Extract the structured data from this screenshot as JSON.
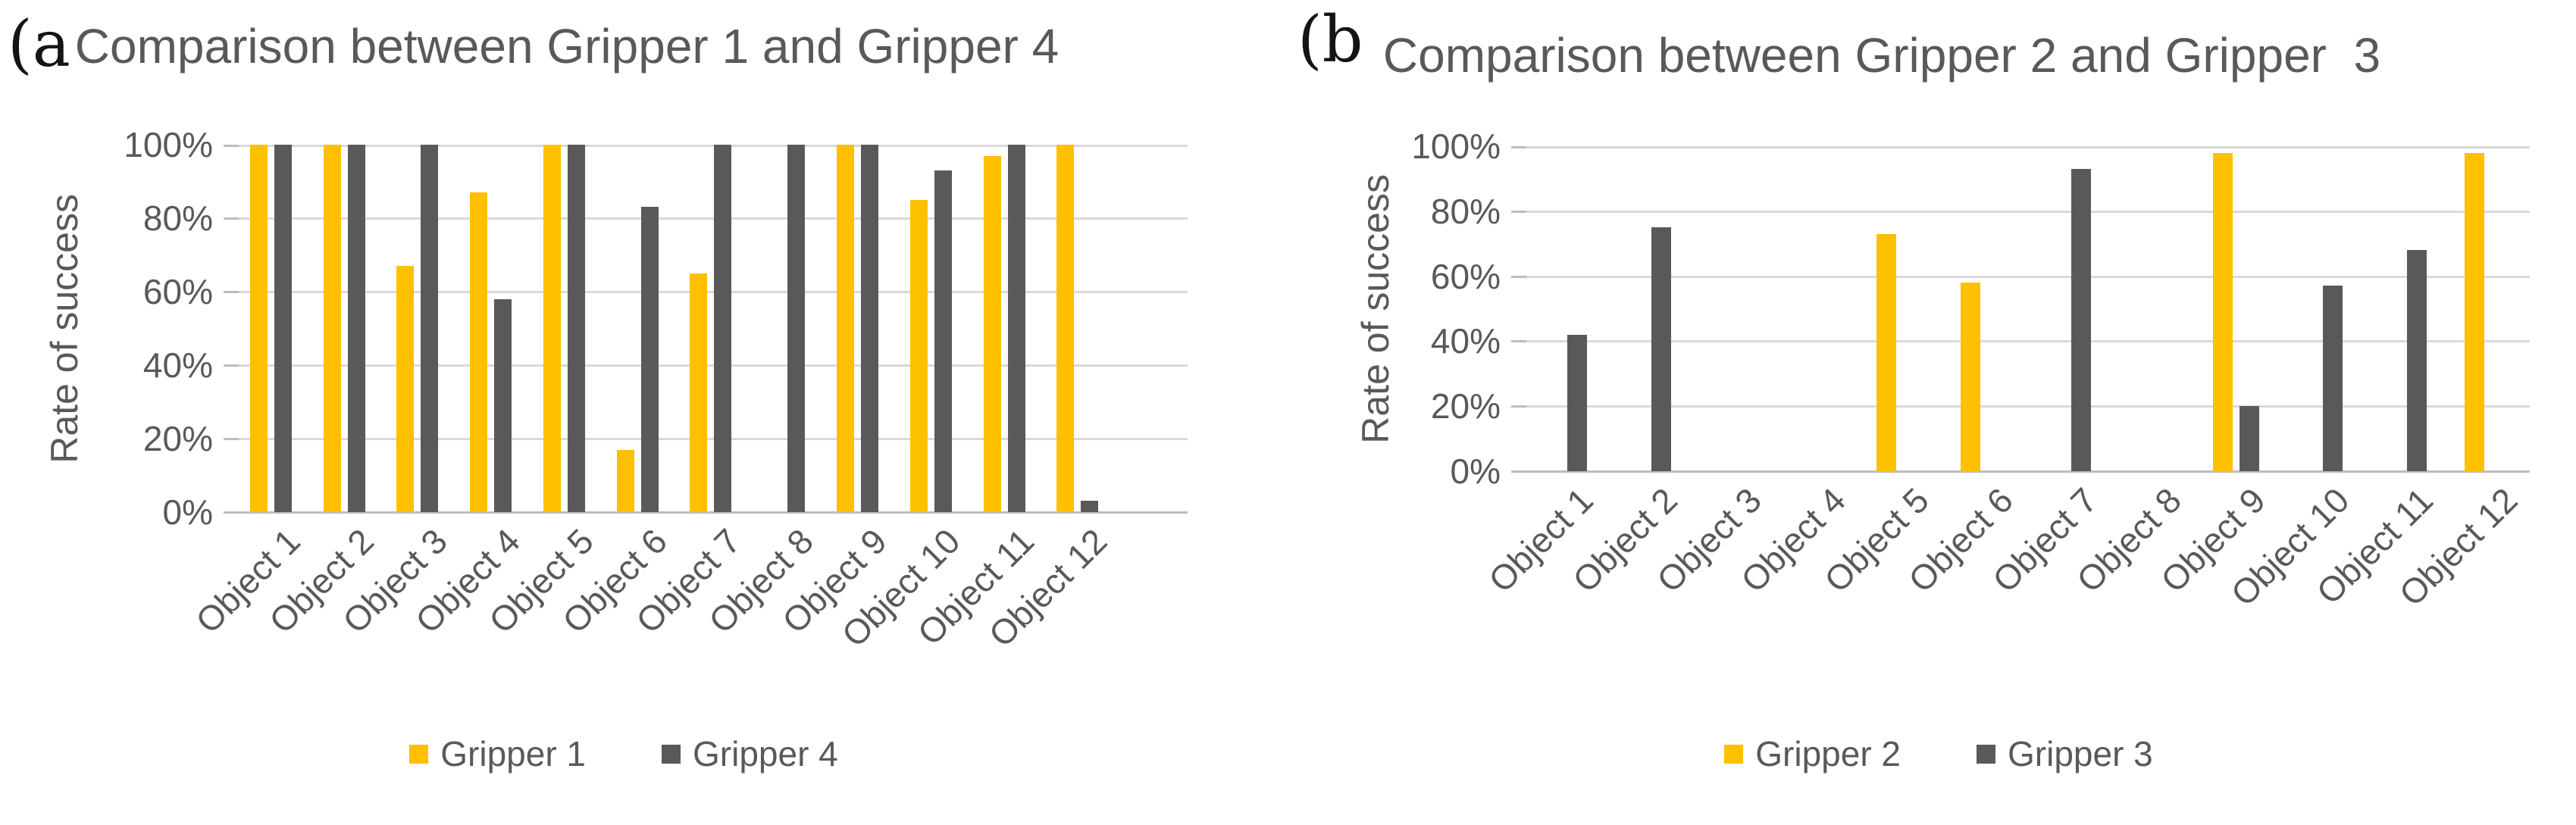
{
  "figure": {
    "panels": [
      {
        "panel_label": "(a"
      },
      {
        "panel_label": "(b"
      }
    ]
  },
  "chart_data": [
    {
      "type": "bar",
      "title": "Comparison between Gripper 1 and Gripper 4",
      "xlabel": "",
      "ylabel": "Rate of success",
      "categories": [
        "Object 1",
        "Object 2",
        "Object 3",
        "Object 4",
        "Object 5",
        "Object 6",
        "Object 7",
        "Object 8",
        "Object 9",
        "Object 10",
        "Object 11",
        "Object 12"
      ],
      "series": [
        {
          "name": "Gripper 1",
          "color": "#FFC000",
          "values": [
            100,
            100,
            67,
            87,
            100,
            17,
            65,
            0,
            100,
            85,
            97,
            100
          ]
        },
        {
          "name": "Gripper 4",
          "color": "#595959",
          "values": [
            100,
            100,
            100,
            58,
            100,
            83,
            100,
            100,
            100,
            93,
            100,
            3
          ]
        }
      ],
      "unit": "%",
      "ylim": [
        0,
        100
      ],
      "yticks": [
        0,
        20,
        40,
        60,
        80,
        100
      ],
      "ytick_labels": [
        "0%",
        "20%",
        "40%",
        "60%",
        "80%",
        "100%"
      ],
      "grid": true,
      "legend_position": "bottom"
    },
    {
      "type": "bar",
      "title": "Comparison between Gripper 2 and Gripper  3",
      "xlabel": "",
      "ylabel": "Rate of success",
      "categories": [
        "Object 1",
        "Object 2",
        "Object 3",
        "Object 4",
        "Object 5",
        "Object 6",
        "Object 7",
        "Object 8",
        "Object 9",
        "Object 10",
        "Object 11",
        "Object 12"
      ],
      "series": [
        {
          "name": "Gripper 2",
          "color": "#FFC000",
          "values": [
            0,
            0,
            0,
            0,
            73,
            58,
            0,
            0,
            98,
            0,
            0,
            98
          ]
        },
        {
          "name": "Gripper 3",
          "color": "#595959",
          "values": [
            42,
            75,
            0,
            0,
            0,
            0,
            93,
            0,
            20,
            57,
            68,
            0
          ]
        }
      ],
      "unit": "%",
      "ylim": [
        0,
        100
      ],
      "yticks": [
        0,
        20,
        40,
        60,
        80,
        100
      ],
      "ytick_labels": [
        "0%",
        "20%",
        "40%",
        "60%",
        "80%",
        "100%"
      ],
      "grid": true,
      "legend_position": "bottom"
    }
  ]
}
